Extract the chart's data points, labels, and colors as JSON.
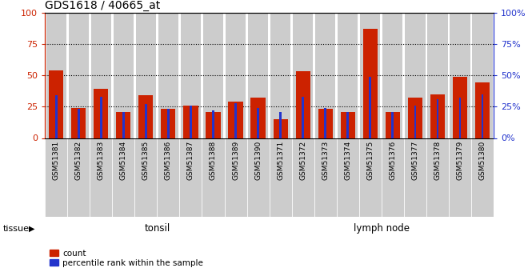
{
  "title": "GDS1618 / 40665_at",
  "samples": [
    "GSM51381",
    "GSM51382",
    "GSM51383",
    "GSM51384",
    "GSM51385",
    "GSM51386",
    "GSM51387",
    "GSM51388",
    "GSM51389",
    "GSM51390",
    "GSM51371",
    "GSM51372",
    "GSM51373",
    "GSM51374",
    "GSM51375",
    "GSM51376",
    "GSM51377",
    "GSM51378",
    "GSM51379",
    "GSM51380"
  ],
  "count": [
    54,
    24,
    39,
    21,
    34,
    23,
    26,
    21,
    29,
    32,
    15,
    53,
    23,
    21,
    87,
    21,
    32,
    35,
    49,
    44
  ],
  "percentile": [
    34,
    23,
    33,
    21,
    27,
    23,
    26,
    22,
    28,
    24,
    21,
    33,
    24,
    21,
    49,
    21,
    26,
    31,
    32,
    35
  ],
  "n_tonsil": 10,
  "n_lymph": 10,
  "red_color": "#cc2200",
  "blue_color": "#2233cc",
  "tonsil_bg": "#bbffbb",
  "lymph_bg": "#33dd33",
  "bar_bg": "#cccccc",
  "yticks": [
    0,
    25,
    50,
    75,
    100
  ],
  "ylim": [
    0,
    100
  ],
  "grid_values": [
    25,
    50,
    75
  ],
  "legend_count": "count",
  "legend_pct": "percentile rank within the sample",
  "tissue_label": "tissue",
  "tonsil_label": "tonsil",
  "lymph_label": "lymph node"
}
